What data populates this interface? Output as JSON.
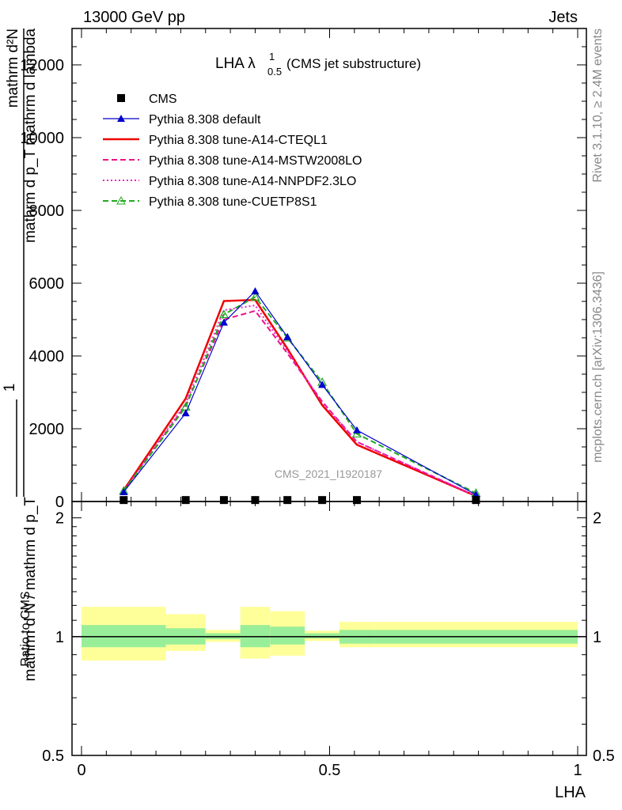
{
  "header": {
    "left": "13000 GeV pp",
    "right": "Jets"
  },
  "side_text": {
    "rivet": "Rivet 3.1.10, ≥ 2.4M events",
    "mcplots": "mcplots.cern.ch [arXiv:1306.3436]"
  },
  "plot_title": {
    "main": "LHA λ",
    "sup": "1",
    "sub": "0.5",
    "tail": " (CMS jet substructure)"
  },
  "watermark": "CMS_2021_I1920187",
  "xlabel": "LHA",
  "ylabel_main_top": "mathrm d²N",
  "ylabel_main_mid": "mathrm d p_T mathrm d lambda",
  "ylabel_main_one": "1",
  "ylabel_main_bot": "mathrm d N / mathrm d p_T",
  "ylabel_ratio": "Ratio to CMS",
  "chart_data": {
    "type": "line",
    "xlim": [
      0,
      1
    ],
    "ylim": [
      0,
      13000
    ],
    "ratio_ylim": [
      0.5,
      2.2
    ],
    "yticks": [
      0,
      2000,
      4000,
      6000,
      8000,
      10000,
      12000
    ],
    "ytick_labels": [
      "0",
      "2000",
      "4000",
      "6000",
      "8000",
      "10000",
      "12000"
    ],
    "xticks": [
      0,
      0.5,
      1
    ],
    "xtick_labels": [
      "0",
      "0.5",
      "1"
    ],
    "ratio_yticks": [
      0.5,
      1,
      2
    ],
    "ratio_ytick_labels": [
      "0.5",
      "1",
      "2"
    ],
    "grid": false,
    "legend_position": "top-left",
    "x": [
      0.085,
      0.21,
      0.287,
      0.35,
      0.415,
      0.485,
      0.555,
      0.795
    ],
    "bin_edges": [
      0.0,
      0.17,
      0.25,
      0.32,
      0.38,
      0.45,
      0.52,
      0.59,
      1.0
    ],
    "series": [
      {
        "name": "CMS",
        "color": "#000000",
        "style": "marker",
        "values": [
          40,
          40,
          40,
          40,
          40,
          40,
          40,
          40
        ]
      },
      {
        "name": "Pythia 8.308 default",
        "color": "#0000cc",
        "style": "solid-thin",
        "marker": "triangle-filled",
        "values": [
          260,
          2430,
          4920,
          5780,
          4520,
          3210,
          1960,
          190
        ]
      },
      {
        "name": "Pythia 8.308 tune-A14-CTEQL1",
        "color": "#ee0000",
        "style": "solid-thick",
        "marker": "none",
        "values": [
          310,
          2830,
          5510,
          5540,
          4200,
          2650,
          1560,
          150
        ]
      },
      {
        "name": "Pythia 8.308 tune-A14-MSTW2008LO",
        "color": "#ee1188",
        "style": "dashed",
        "marker": "none",
        "values": [
          280,
          2650,
          5000,
          5240,
          4070,
          2750,
          1640,
          150
        ]
      },
      {
        "name": "Pythia 8.308 tune-A14-NNPDF2.3LO",
        "color": "#ee22cc",
        "style": "dotted",
        "marker": "none",
        "values": [
          290,
          2690,
          5260,
          5390,
          4130,
          2720,
          1640,
          150
        ]
      },
      {
        "name": "Pythia 8.308 tune-CUETP8S1",
        "color": "#22aa22",
        "style": "dashed",
        "marker": "triangle-open",
        "values": [
          290,
          2600,
          5140,
          5620,
          4500,
          3280,
          1860,
          230
        ]
      }
    ],
    "ratio_bands": {
      "inner_low": [
        0.94,
        0.955,
        0.985,
        0.94,
        0.955,
        0.99,
        0.96,
        0.96
      ],
      "inner_high": [
        1.07,
        1.05,
        1.02,
        1.07,
        1.06,
        1.02,
        1.04,
        1.04
      ],
      "outer_low": [
        0.87,
        0.92,
        0.97,
        0.88,
        0.895,
        0.975,
        0.94,
        0.94
      ],
      "outer_high": [
        1.19,
        1.14,
        1.04,
        1.19,
        1.16,
        1.035,
        1.09,
        1.09
      ],
      "inner_color": "#99ee99",
      "outer_color": "#ffff99"
    }
  }
}
